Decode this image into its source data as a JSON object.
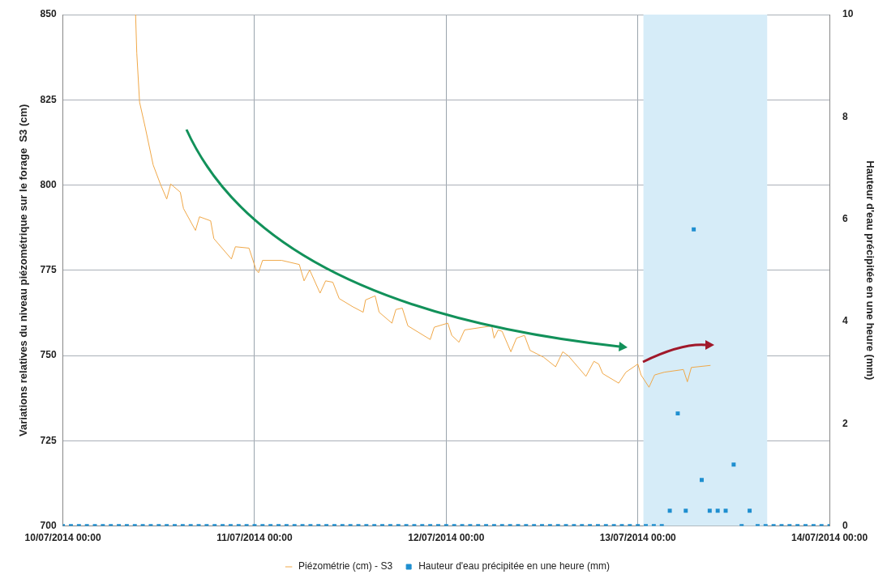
{
  "chart_data": {
    "type": "line",
    "ylabel": "Variations relatives du niveau piézométrique sur le forage  S3 (cm)",
    "y2label": "Hauteur d'eau précipitée en une heure (mm)",
    "xlim": [
      "2014-07-10T00:00",
      "2014-07-14T00:00"
    ],
    "xticks": [
      {
        "value": "2014-07-10T00:00",
        "label": "10/07/2014 00:00"
      },
      {
        "value": "2014-07-11T00:00",
        "label": "11/07/2014 00:00"
      },
      {
        "value": "2014-07-12T00:00",
        "label": "12/07/2014 00:00"
      },
      {
        "value": "2014-07-13T00:00",
        "label": "13/07/2014 00:00"
      },
      {
        "value": "2014-07-14T00:00",
        "label": "14/07/2014 00:00"
      }
    ],
    "ylim": [
      700,
      850
    ],
    "yticks": [
      700,
      725,
      750,
      775,
      800,
      825,
      850
    ],
    "y2lim": [
      0,
      10
    ],
    "y2ticks": [
      0,
      2,
      4,
      6,
      8,
      10
    ],
    "grid": true,
    "legend": "bottom",
    "bands": [
      {
        "axis": "x",
        "from": "2014-07-13T00:42",
        "to": "2014-07-13T16:12",
        "color": "#d6ecf8"
      }
    ],
    "series": [
      {
        "name": "Piézométrie (cm) - S3",
        "color": "#f0a848",
        "marker": "none",
        "line_style": "solid",
        "x": [
          "2014-07-10T09:06",
          "2014-07-10T09:15",
          "2014-07-10T09:36",
          "2014-07-10T10:18",
          "2014-07-10T11:18",
          "2014-07-10T12:12",
          "2014-07-10T13:00",
          "2014-07-10T13:30",
          "2014-07-10T14:42",
          "2014-07-10T15:06",
          "2014-07-10T16:36",
          "2014-07-10T17:06",
          "2014-07-10T18:30",
          "2014-07-10T18:54",
          "2014-07-10T21:06",
          "2014-07-10T21:36",
          "2014-07-10T23:18",
          "2014-07-11T00:12",
          "2014-07-11T00:30",
          "2014-07-11T01:00",
          "2014-07-11T03:24",
          "2014-07-11T05:36",
          "2014-07-11T06:12",
          "2014-07-11T06:54",
          "2014-07-11T08:12",
          "2014-07-11T08:54",
          "2014-07-11T09:48",
          "2014-07-11T10:36",
          "2014-07-11T12:18",
          "2014-07-11T13:36",
          "2014-07-11T13:54",
          "2014-07-11T15:06",
          "2014-07-11T15:36",
          "2014-07-11T17:12",
          "2014-07-11T17:42",
          "2014-07-11T18:30",
          "2014-07-11T19:12",
          "2014-07-11T22:00",
          "2014-07-11T22:30",
          "2014-07-12T00:12",
          "2014-07-12T00:42",
          "2014-07-12T01:36",
          "2014-07-12T02:18",
          "2014-07-12T05:42",
          "2014-07-12T06:00",
          "2014-07-12T06:30",
          "2014-07-12T07:00",
          "2014-07-12T08:06",
          "2014-07-12T08:48",
          "2014-07-12T09:48",
          "2014-07-12T10:30",
          "2014-07-12T12:12",
          "2014-07-12T13:42",
          "2014-07-12T14:36",
          "2014-07-12T15:18",
          "2014-07-12T17:30",
          "2014-07-12T18:30",
          "2014-07-12T19:06",
          "2014-07-12T19:36",
          "2014-07-12T21:36",
          "2014-07-12T22:30",
          "2014-07-13T00:00",
          "2014-07-13T00:24",
          "2014-07-13T01:24",
          "2014-07-13T02:06",
          "2014-07-13T03:18",
          "2014-07-13T05:42",
          "2014-07-13T06:12",
          "2014-07-13T06:42",
          "2014-07-13T09:06"
        ],
        "values": [
          850,
          838.7,
          824.3,
          817,
          805.9,
          800.3,
          795.9,
          800.3,
          797.9,
          793.1,
          786.7,
          790.7,
          789.5,
          784.3,
          778.3,
          781.9,
          781.5,
          775.1,
          774.3,
          777.9,
          777.9,
          776.7,
          771.9,
          775.1,
          768.3,
          771.9,
          771.5,
          766.7,
          764.3,
          762.7,
          766.3,
          767.5,
          762.7,
          759.5,
          763.5,
          763.9,
          758.7,
          754.7,
          758.3,
          759.5,
          755.9,
          753.9,
          757.5,
          758.7,
          755.1,
          757.5,
          757.1,
          751.1,
          755.1,
          755.9,
          751.5,
          749.5,
          746.7,
          751.1,
          749.9,
          743.9,
          748.3,
          747.5,
          744.7,
          741.9,
          745.1,
          747.5,
          744.3,
          740.7,
          744.3,
          745.1,
          745.9,
          742.3,
          746.5,
          747.1
        ]
      },
      {
        "name": "Hauteur d'eau précipitée en une heure (mm)",
        "type": "scatter",
        "axis": "y2",
        "color": "#1f8fd0",
        "marker": "square",
        "x": [
          "2014-07-10T00:00",
          "2014-07-10T01:00",
          "2014-07-10T02:00",
          "2014-07-10T03:00",
          "2014-07-10T04:00",
          "2014-07-10T05:00",
          "2014-07-10T06:00",
          "2014-07-10T07:00",
          "2014-07-10T08:00",
          "2014-07-10T09:00",
          "2014-07-10T10:00",
          "2014-07-10T11:00",
          "2014-07-10T12:00",
          "2014-07-10T13:00",
          "2014-07-10T14:00",
          "2014-07-10T15:00",
          "2014-07-10T16:00",
          "2014-07-10T17:00",
          "2014-07-10T18:00",
          "2014-07-10T19:00",
          "2014-07-10T20:00",
          "2014-07-10T21:00",
          "2014-07-10T22:00",
          "2014-07-10T23:00",
          "2014-07-11T00:00",
          "2014-07-11T01:00",
          "2014-07-11T02:00",
          "2014-07-11T03:00",
          "2014-07-11T04:00",
          "2014-07-11T05:00",
          "2014-07-11T06:00",
          "2014-07-11T07:00",
          "2014-07-11T08:00",
          "2014-07-11T09:00",
          "2014-07-11T10:00",
          "2014-07-11T11:00",
          "2014-07-11T12:00",
          "2014-07-11T13:00",
          "2014-07-11T14:00",
          "2014-07-11T15:00",
          "2014-07-11T16:00",
          "2014-07-11T17:00",
          "2014-07-11T18:00",
          "2014-07-11T19:00",
          "2014-07-11T20:00",
          "2014-07-11T21:00",
          "2014-07-11T22:00",
          "2014-07-11T23:00",
          "2014-07-12T00:00",
          "2014-07-12T01:00",
          "2014-07-12T02:00",
          "2014-07-12T03:00",
          "2014-07-12T04:00",
          "2014-07-12T05:00",
          "2014-07-12T06:00",
          "2014-07-12T07:00",
          "2014-07-12T08:00",
          "2014-07-12T09:00",
          "2014-07-12T10:00",
          "2014-07-12T11:00",
          "2014-07-12T12:00",
          "2014-07-12T13:00",
          "2014-07-12T14:00",
          "2014-07-12T15:00",
          "2014-07-12T16:00",
          "2014-07-12T17:00",
          "2014-07-12T18:00",
          "2014-07-12T19:00",
          "2014-07-12T20:00",
          "2014-07-12T21:00",
          "2014-07-12T22:00",
          "2014-07-12T23:00",
          "2014-07-13T00:00",
          "2014-07-13T01:00",
          "2014-07-13T02:00",
          "2014-07-13T03:00",
          "2014-07-13T04:00",
          "2014-07-13T05:00",
          "2014-07-13T06:00",
          "2014-07-13T07:00",
          "2014-07-13T08:00",
          "2014-07-13T09:00",
          "2014-07-13T10:00",
          "2014-07-13T11:00",
          "2014-07-13T12:00",
          "2014-07-13T13:00",
          "2014-07-13T14:00",
          "2014-07-13T15:00",
          "2014-07-13T16:00",
          "2014-07-13T17:00",
          "2014-07-13T18:00",
          "2014-07-13T19:00",
          "2014-07-13T20:00",
          "2014-07-13T21:00",
          "2014-07-13T22:00",
          "2014-07-13T23:00",
          "2014-07-14T00:00"
        ],
        "values": [
          0,
          0,
          0,
          0,
          0,
          0,
          0,
          0,
          0,
          0,
          0,
          0,
          0,
          0,
          0,
          0,
          0,
          0,
          0,
          0,
          0,
          0,
          0,
          0,
          0,
          0,
          0,
          0,
          0,
          0,
          0,
          0,
          0,
          0,
          0,
          0,
          0,
          0,
          0,
          0,
          0,
          0,
          0,
          0,
          0,
          0,
          0,
          0,
          0,
          0,
          0,
          0,
          0,
          0,
          0,
          0,
          0,
          0,
          0,
          0,
          0,
          0,
          0,
          0,
          0,
          0,
          0,
          0,
          0,
          0,
          0,
          0,
          0,
          0,
          0,
          0,
          0.3,
          2.2,
          0.3,
          5.8,
          0.9,
          0.3,
          0.3,
          0.3,
          1.2,
          0,
          0.3,
          0,
          0,
          0,
          0,
          0,
          0,
          0,
          0,
          0,
          0
        ]
      }
    ]
  }
}
